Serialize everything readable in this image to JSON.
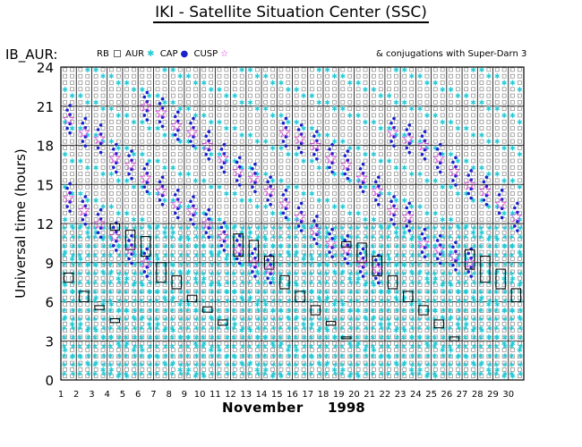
{
  "title": "IKI - Satellite Situation Center (SSC)",
  "series_label": "IB_AUR:",
  "legend": {
    "rb": "RB",
    "aur": "AUR",
    "cap": "CAP",
    "cusp": "CUSP"
  },
  "conjugations_note": "& conjugations with Super-Darn 3",
  "month": "November",
  "year": "1998",
  "colors": {
    "aur": "#26c9d4",
    "cap": "#1a22cc",
    "cusp": "#e020e0",
    "rb": "#777777"
  },
  "chart_data": {
    "type": "scatter",
    "title": "IKI - Satellite Situation Center (SSC)",
    "xlabel": "November 1998",
    "ylabel": "Universal time (hours)",
    "xlim": [
      1,
      31
    ],
    "ylim": [
      0,
      24
    ],
    "x_ticks": [
      1,
      2,
      3,
      4,
      5,
      6,
      7,
      8,
      9,
      10,
      11,
      12,
      13,
      14,
      15,
      16,
      17,
      18,
      19,
      20,
      21,
      22,
      23,
      24,
      25,
      26,
      27,
      28,
      29,
      30
    ],
    "y_ticks": [
      0,
      3,
      6,
      9,
      12,
      15,
      18,
      21,
      24
    ],
    "grid": true,
    "legend": [
      "RB",
      "AUR",
      "CAP",
      "CUSP"
    ],
    "columns_per_day": 2,
    "cusp_events": [
      {
        "day": 1.5,
        "hour": 20.0
      },
      {
        "day": 1.5,
        "hour": 14.0
      },
      {
        "day": 2.5,
        "hour": 19.0
      },
      {
        "day": 2.5,
        "hour": 13.0
      },
      {
        "day": 3.5,
        "hour": 18.5
      },
      {
        "day": 3.5,
        "hour": 12.0
      },
      {
        "day": 4.5,
        "hour": 17.0
      },
      {
        "day": 4.5,
        "hour": 11.0
      },
      {
        "day": 5.5,
        "hour": 16.5
      },
      {
        "day": 5.5,
        "hour": 10.0
      },
      {
        "day": 6.5,
        "hour": 21.0
      },
      {
        "day": 6.5,
        "hour": 15.5
      },
      {
        "day": 6.5,
        "hour": 9.0
      },
      {
        "day": 7.5,
        "hour": 20.5
      },
      {
        "day": 7.5,
        "hour": 14.5
      },
      {
        "day": 8.5,
        "hour": 19.5
      },
      {
        "day": 8.5,
        "hour": 13.5
      },
      {
        "day": 9.5,
        "hour": 19.0
      },
      {
        "day": 9.5,
        "hour": 13.0
      },
      {
        "day": 10.5,
        "hour": 18.0
      },
      {
        "day": 10.5,
        "hour": 12.0
      },
      {
        "day": 11.5,
        "hour": 17.0
      },
      {
        "day": 11.5,
        "hour": 11.0
      },
      {
        "day": 12.5,
        "hour": 16.0
      },
      {
        "day": 12.5,
        "hour": 10.0
      },
      {
        "day": 13.5,
        "hour": 15.5
      },
      {
        "day": 13.5,
        "hour": 9.0
      },
      {
        "day": 14.5,
        "hour": 14.5
      },
      {
        "day": 14.5,
        "hour": 8.5
      },
      {
        "day": 15.5,
        "hour": 19.0
      },
      {
        "day": 15.5,
        "hour": 13.5
      },
      {
        "day": 16.5,
        "hour": 18.5
      },
      {
        "day": 16.5,
        "hour": 12.5
      },
      {
        "day": 17.5,
        "hour": 18.0
      },
      {
        "day": 17.5,
        "hour": 11.5
      },
      {
        "day": 18.5,
        "hour": 17.0
      },
      {
        "day": 18.5,
        "hour": 10.5
      },
      {
        "day": 19.5,
        "hour": 16.5
      },
      {
        "day": 19.5,
        "hour": 10.0
      },
      {
        "day": 20.5,
        "hour": 15.5
      },
      {
        "day": 20.5,
        "hour": 9.0
      },
      {
        "day": 21.5,
        "hour": 14.5
      },
      {
        "day": 21.5,
        "hour": 8.5
      },
      {
        "day": 22.5,
        "hour": 19.0
      },
      {
        "day": 22.5,
        "hour": 13.0
      },
      {
        "day": 23.5,
        "hour": 18.5
      },
      {
        "day": 23.5,
        "hour": 12.5
      },
      {
        "day": 24.5,
        "hour": 18.0
      },
      {
        "day": 24.5,
        "hour": 10.5
      },
      {
        "day": 25.5,
        "hour": 17.0
      },
      {
        "day": 25.5,
        "hour": 10.0
      },
      {
        "day": 26.5,
        "hour": 16.0
      },
      {
        "day": 26.5,
        "hour": 9.5
      },
      {
        "day": 27.5,
        "hour": 15.0
      },
      {
        "day": 27.5,
        "hour": 9.0
      },
      {
        "day": 28.5,
        "hour": 14.5
      },
      {
        "day": 29.5,
        "hour": 13.5
      },
      {
        "day": 30.5,
        "hour": 12.5
      }
    ],
    "conjugation_boxes": [
      {
        "day": 1.5,
        "from": 7.5,
        "to": 8.2
      },
      {
        "day": 2.5,
        "from": 6.0,
        "to": 6.8
      },
      {
        "day": 3.5,
        "from": 5.4,
        "to": 5.7
      },
      {
        "day": 4.5,
        "from": 4.4,
        "to": 4.7
      },
      {
        "day": 4.5,
        "from": 11.5,
        "to": 12.0
      },
      {
        "day": 5.5,
        "from": 10.0,
        "to": 11.5
      },
      {
        "day": 6.5,
        "from": 9.5,
        "to": 11.0
      },
      {
        "day": 7.5,
        "from": 7.5,
        "to": 9.0
      },
      {
        "day": 8.5,
        "from": 7.0,
        "to": 8.0
      },
      {
        "day": 9.5,
        "from": 6.0,
        "to": 6.5
      },
      {
        "day": 10.5,
        "from": 5.2,
        "to": 5.6
      },
      {
        "day": 11.5,
        "from": 4.2,
        "to": 4.6
      },
      {
        "day": 12.5,
        "from": 9.5,
        "to": 11.2
      },
      {
        "day": 13.5,
        "from": 9.0,
        "to": 10.7
      },
      {
        "day": 14.5,
        "from": 8.5,
        "to": 9.5
      },
      {
        "day": 15.5,
        "from": 7.0,
        "to": 8.0
      },
      {
        "day": 16.5,
        "from": 6.0,
        "to": 6.8
      },
      {
        "day": 17.5,
        "from": 5.0,
        "to": 5.7
      },
      {
        "day": 18.5,
        "from": 4.2,
        "to": 4.5
      },
      {
        "day": 19.5,
        "from": 3.2,
        "to": 3.3
      },
      {
        "day": 19.5,
        "from": 10.2,
        "to": 10.6
      },
      {
        "day": 20.5,
        "from": 9.0,
        "to": 10.5
      },
      {
        "day": 21.5,
        "from": 8.0,
        "to": 9.5
      },
      {
        "day": 22.5,
        "from": 7.0,
        "to": 8.0
      },
      {
        "day": 23.5,
        "from": 6.0,
        "to": 6.8
      },
      {
        "day": 24.5,
        "from": 5.0,
        "to": 5.7
      },
      {
        "day": 25.5,
        "from": 4.0,
        "to": 4.6
      },
      {
        "day": 26.5,
        "from": 3.0,
        "to": 3.3
      },
      {
        "day": 27.5,
        "from": 8.5,
        "to": 10.0
      },
      {
        "day": 28.5,
        "from": 7.5,
        "to": 9.5
      },
      {
        "day": 29.5,
        "from": 7.0,
        "to": 8.5
      },
      {
        "day": 30.5,
        "from": 6.0,
        "to": 7.0
      }
    ]
  }
}
